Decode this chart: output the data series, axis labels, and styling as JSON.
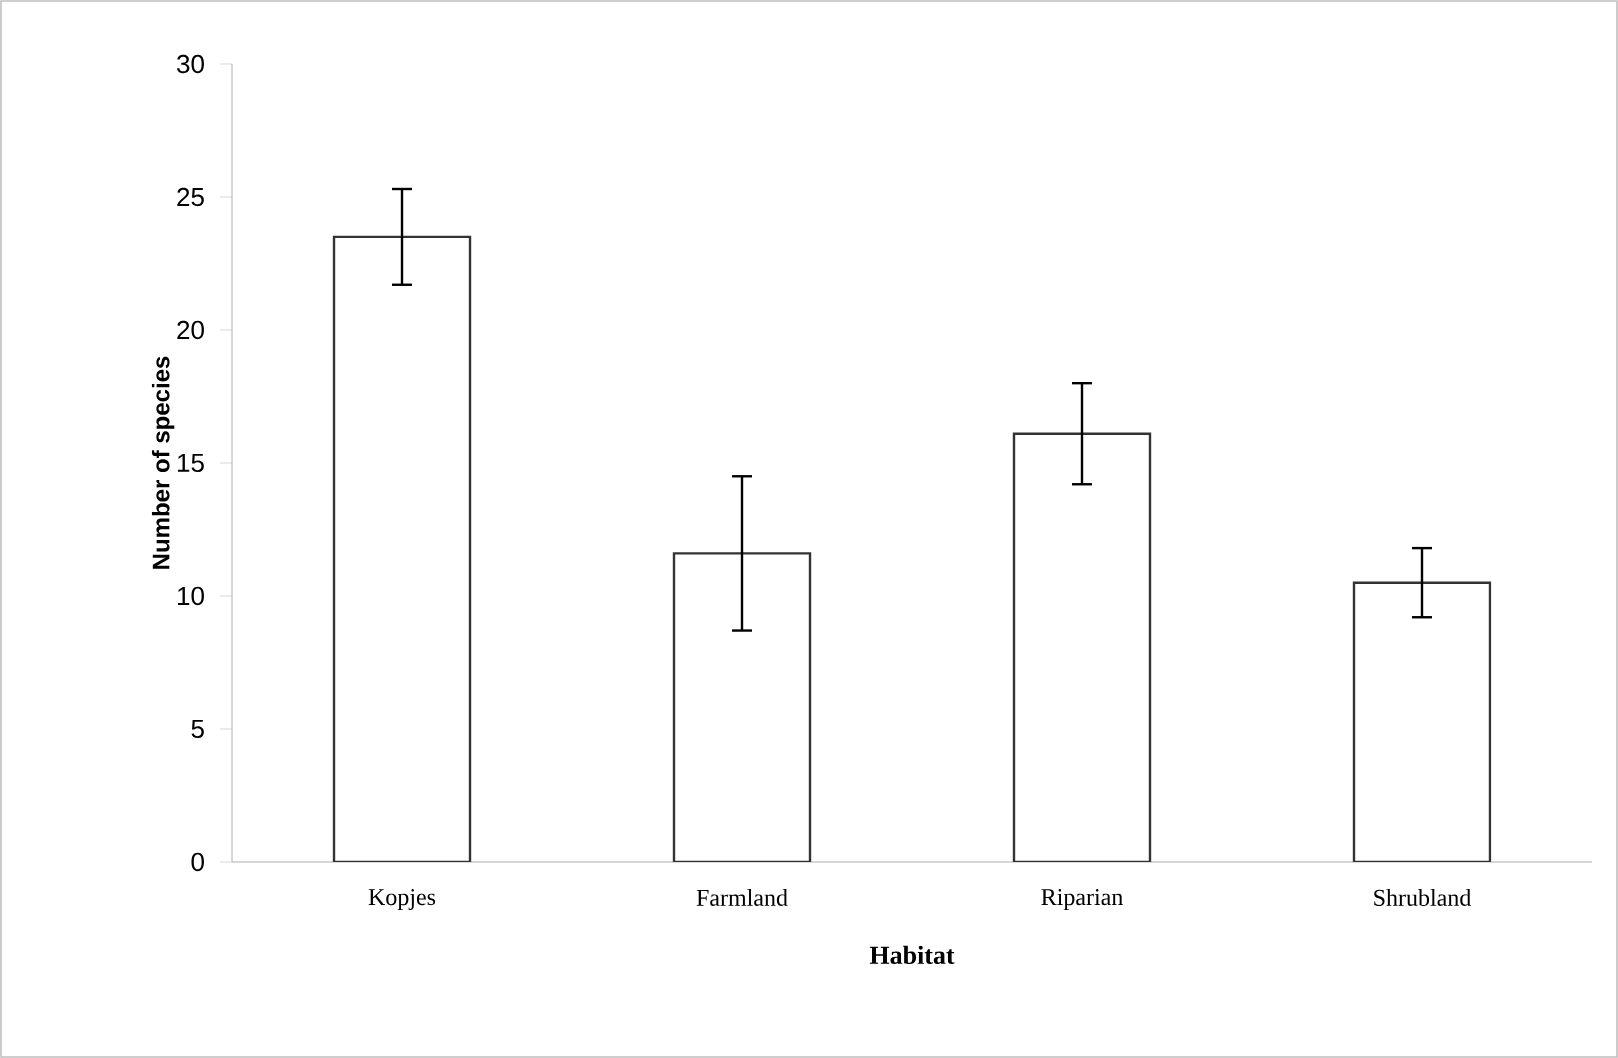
{
  "chart_data": {
    "type": "bar",
    "xlabel": "Habitat",
    "ylabel": "Number of species",
    "categories": [
      "Kopjes",
      "Farmland",
      "Riparian",
      "Shrubland"
    ],
    "values": [
      23.5,
      11.6,
      16.1,
      10.5
    ],
    "errors": [
      1.8,
      2.9,
      1.9,
      1.3
    ],
    "color": "#ffffff",
    "ylim": [
      0,
      30
    ],
    "yticks": [
      0,
      5,
      10,
      15,
      20,
      25,
      30
    ],
    "grid": false
  }
}
